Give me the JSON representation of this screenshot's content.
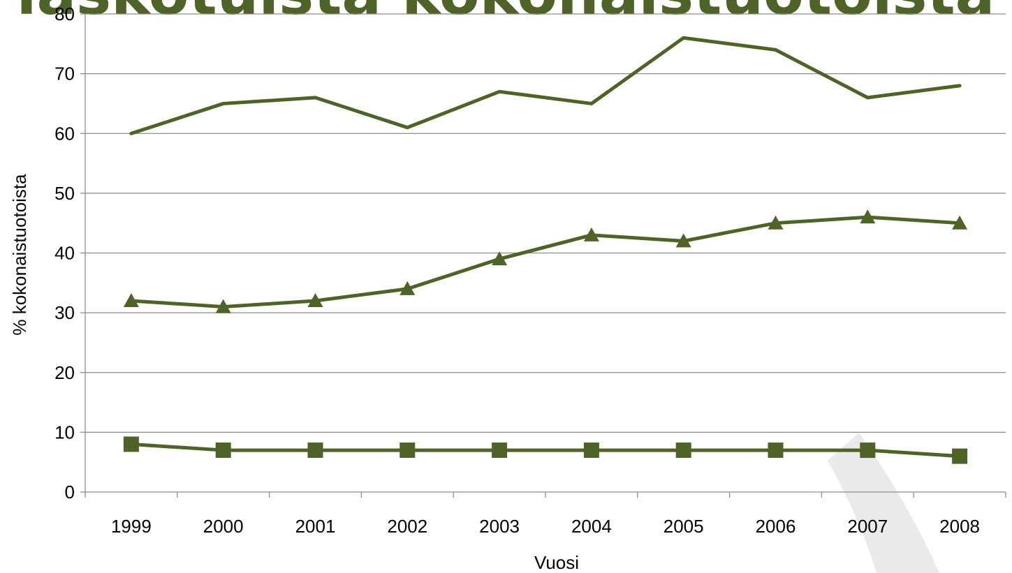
{
  "chart_data": {
    "type": "line",
    "title": "",
    "background_title_fragment": "laskotuista kokonaistuotoista",
    "xlabel": "Vuosi",
    "ylabel": "% kokonaistuotoista",
    "categories": [
      "1999",
      "2000",
      "2001",
      "2002",
      "2003",
      "2004",
      "2005",
      "2006",
      "2007",
      "2008"
    ],
    "ylim": [
      0,
      80
    ],
    "yticks": [
      0,
      10,
      20,
      30,
      40,
      50,
      60,
      70,
      80
    ],
    "grid": "horizontal",
    "legend": "none",
    "series": [
      {
        "values": [
          60,
          65,
          66,
          61,
          67,
          65,
          76,
          74,
          66,
          68
        ],
        "marker": "none",
        "color": "#4F6228"
      },
      {
        "values": [
          32,
          31,
          32,
          34,
          39,
          43,
          42,
          45,
          46,
          45
        ],
        "marker": "triangle",
        "color": "#4F6228"
      },
      {
        "values": [
          8,
          7,
          7,
          7,
          7,
          7,
          7,
          7,
          7,
          6
        ],
        "marker": "square",
        "color": "#4F6228"
      }
    ]
  },
  "colors": {
    "series": "#4F6228",
    "title_overlay": "#4F6228",
    "watermark": "#E8E8E8",
    "grid": "#8C8C8C"
  }
}
